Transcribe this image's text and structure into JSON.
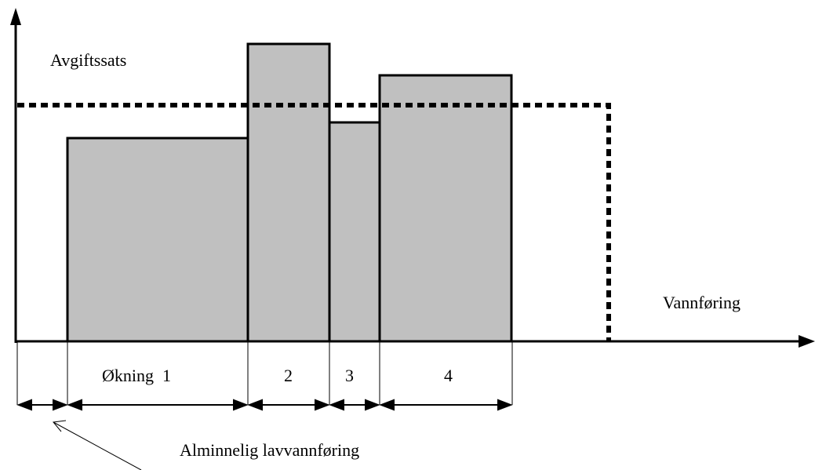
{
  "axes": {
    "y_label": "Avgiftssats",
    "x_label": "Vannføring"
  },
  "segments": {
    "labels": [
      "Økning  1",
      "2",
      "3",
      "4"
    ]
  },
  "annotation": {
    "text": "Alminnelig lavvannføring"
  },
  "colors": {
    "bar_fill": "#c0c0c0",
    "line": "#000000",
    "background": "#ffffff"
  }
}
